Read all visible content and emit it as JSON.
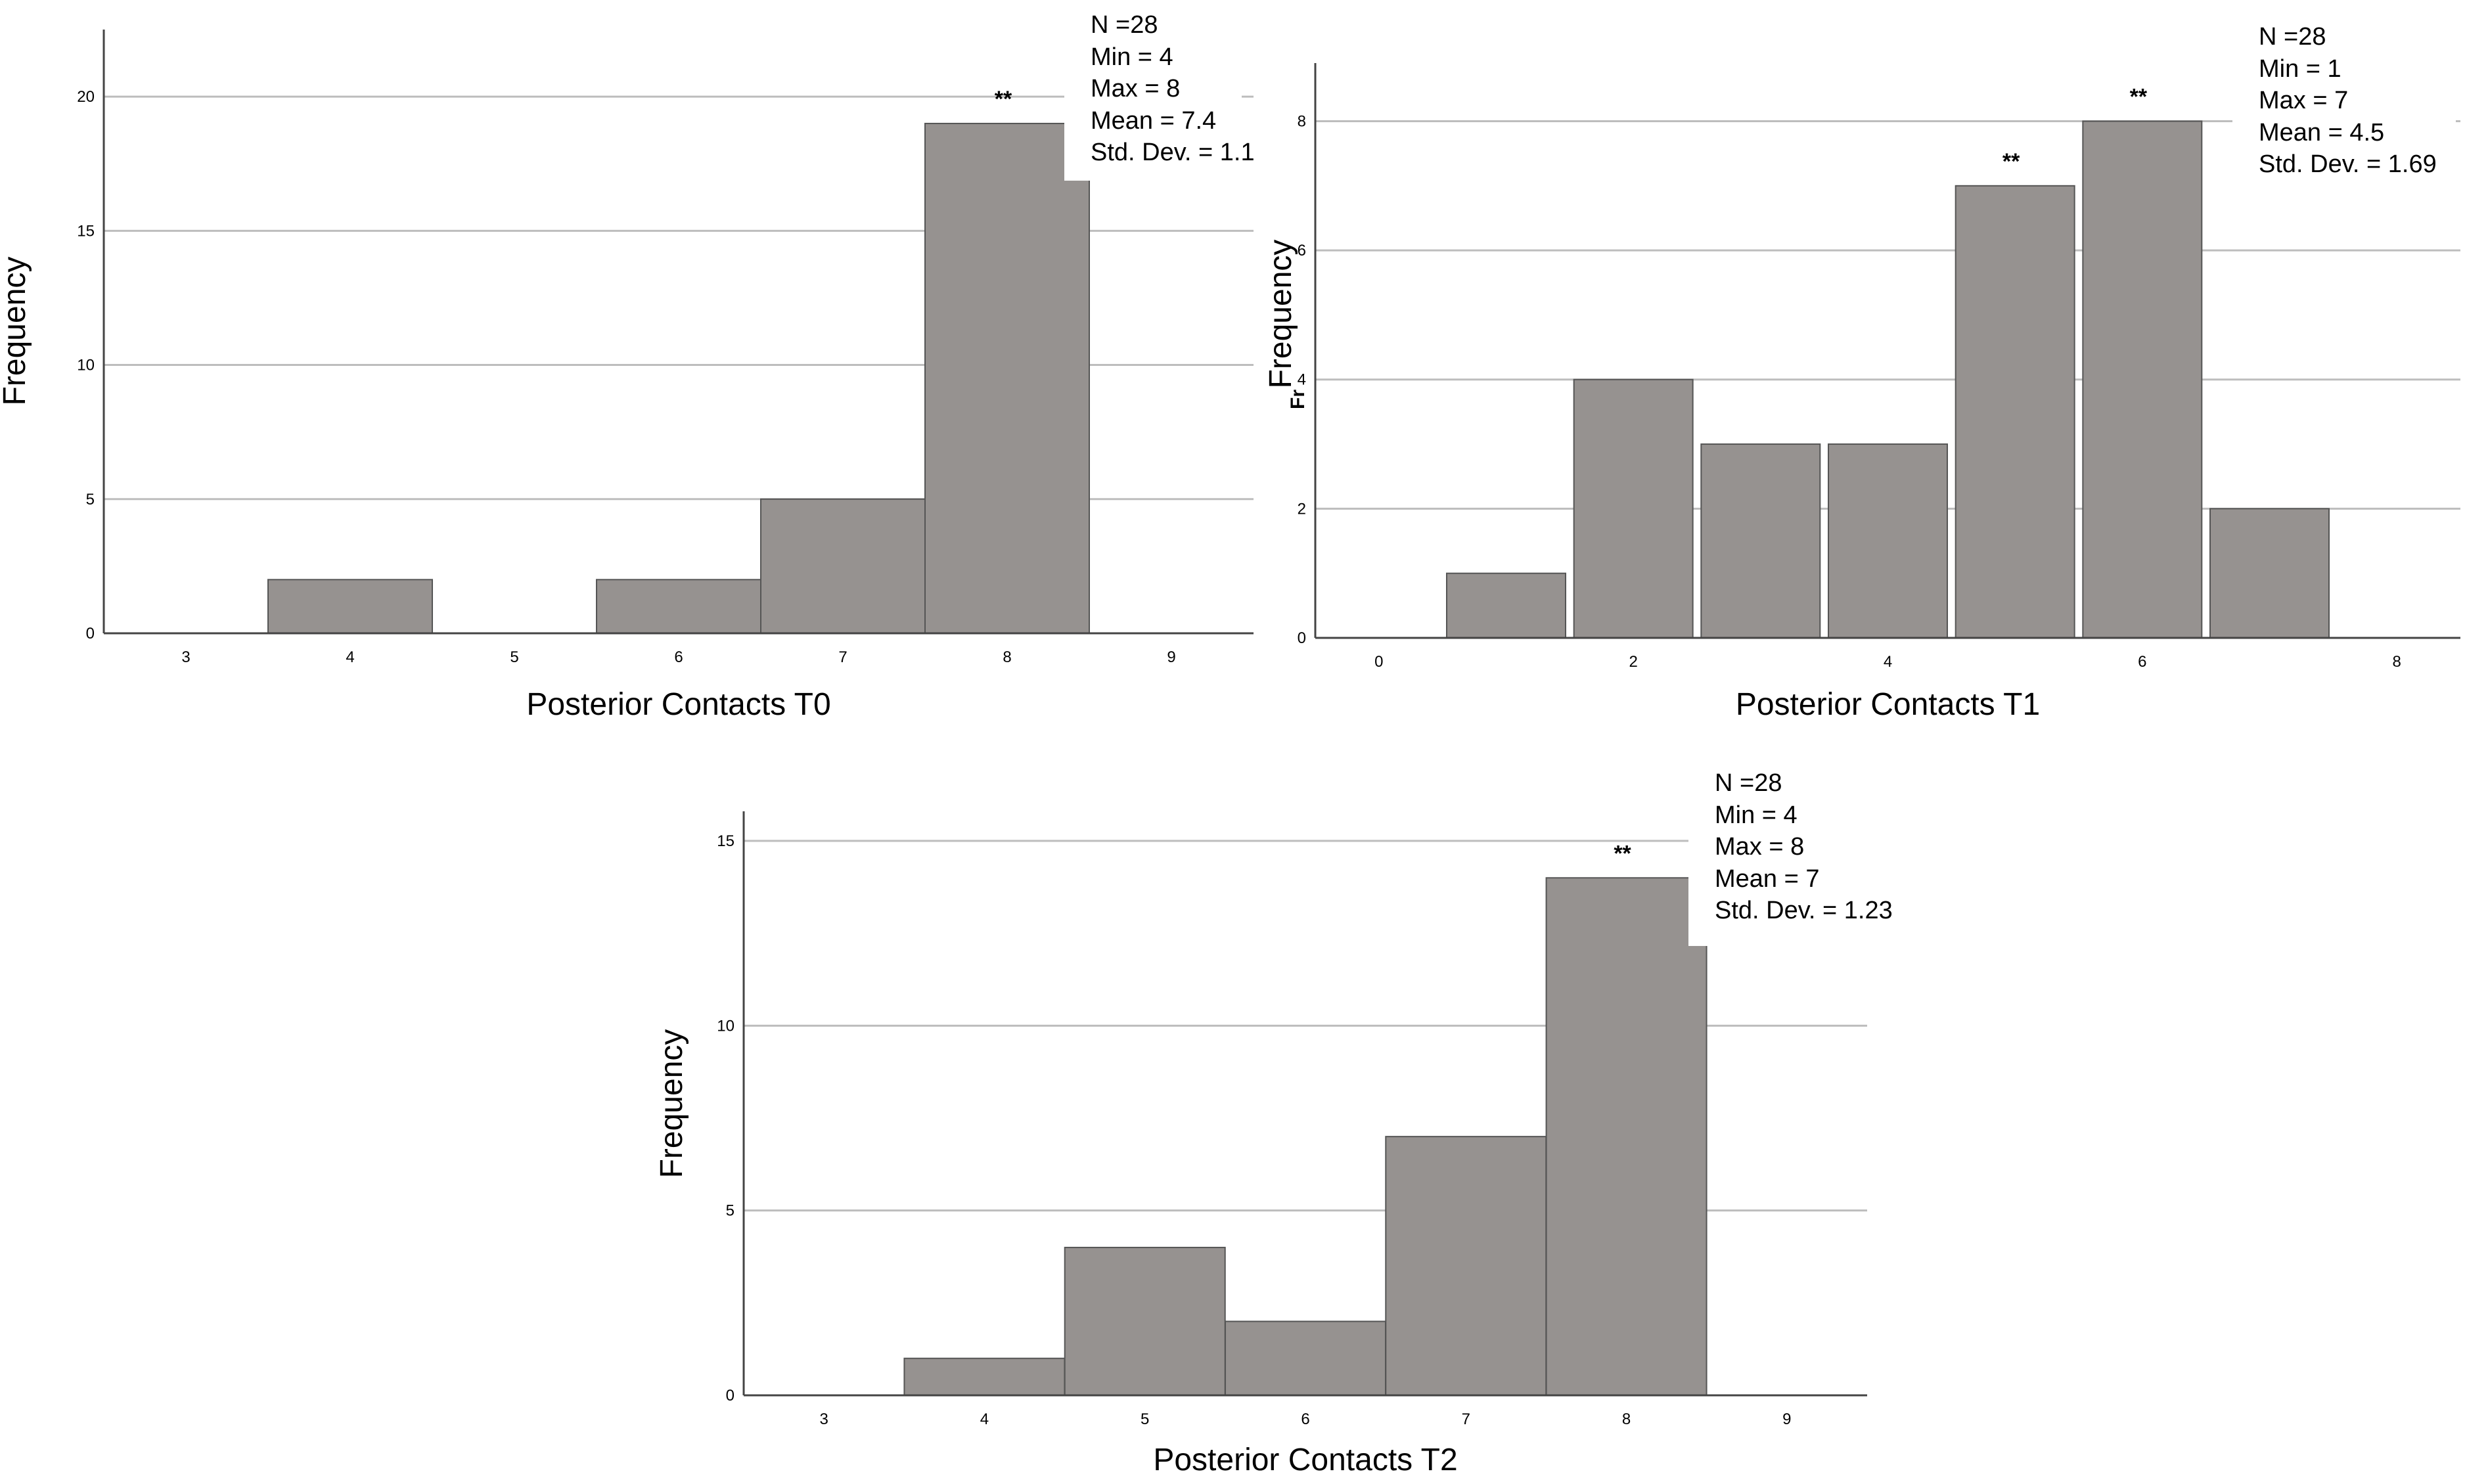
{
  "colors": {
    "bar": "#969290",
    "bar_stroke": "#555555",
    "grid": "#bdbdbd",
    "axis": "#444444",
    "text": "#000000"
  },
  "chart_data": [
    {
      "type": "bar",
      "title": "",
      "xlabel": "Posterior Contacts T0",
      "ylabel": "Frequency",
      "x_ticks": [
        3,
        4,
        5,
        6,
        7,
        8,
        9
      ],
      "x_range": [
        2.5,
        9.5
      ],
      "y_ticks": [
        0,
        5,
        10,
        15,
        20
      ],
      "ylim": [
        0,
        22.5
      ],
      "grid": true,
      "bars": [
        {
          "x": 4,
          "value": 2,
          "label": ""
        },
        {
          "x": 6,
          "value": 2,
          "label": ""
        },
        {
          "x": 7,
          "value": 5,
          "label": ""
        },
        {
          "x": 8,
          "value": 19,
          "label": "**"
        }
      ],
      "stats": [
        "N =28",
        "Min = 4",
        "Max = 8",
        "Mean = 7.4",
        "Std. Dev. = 1.1"
      ]
    },
    {
      "type": "bar",
      "title": "",
      "xlabel": "Posterior Contacts T1",
      "ylabel": "Frequency",
      "ylabel_fragment": "Fr",
      "x_ticks": [
        0,
        2,
        4,
        6,
        8
      ],
      "x_range": [
        -0.5,
        8.5
      ],
      "y_ticks": [
        0,
        2,
        4,
        6,
        8
      ],
      "ylim": [
        0,
        8.9
      ],
      "grid": true,
      "bars": [
        {
          "x": 1,
          "value": 1,
          "label": ""
        },
        {
          "x": 2,
          "value": 4,
          "label": ""
        },
        {
          "x": 3,
          "value": 3,
          "label": ""
        },
        {
          "x": 4,
          "value": 3,
          "label": ""
        },
        {
          "x": 5,
          "value": 7,
          "label": "**"
        },
        {
          "x": 6,
          "value": 8,
          "label": "**"
        },
        {
          "x": 7,
          "value": 2,
          "label": ""
        }
      ],
      "stats": [
        "N =28",
        "Min = 1",
        "Max = 7",
        "Mean = 4.5",
        "Std. Dev. = 1.69"
      ]
    },
    {
      "type": "bar",
      "title": "",
      "xlabel": "Posterior Contacts T2",
      "ylabel": "Frequency",
      "x_ticks": [
        3,
        4,
        5,
        6,
        7,
        8,
        9
      ],
      "x_range": [
        2.5,
        9.5
      ],
      "y_ticks": [
        0,
        5,
        10,
        15
      ],
      "ylim": [
        0,
        15.8
      ],
      "grid": true,
      "bars": [
        {
          "x": 4,
          "value": 1,
          "label": ""
        },
        {
          "x": 5,
          "value": 4,
          "label": ""
        },
        {
          "x": 6,
          "value": 2,
          "label": ""
        },
        {
          "x": 7,
          "value": 7,
          "label": ""
        },
        {
          "x": 8,
          "value": 14,
          "label": "**"
        }
      ],
      "stats": [
        "N =28",
        "Min = 4",
        "Max = 8",
        "Mean = 7",
        "Std. Dev. = 1.23"
      ]
    }
  ]
}
